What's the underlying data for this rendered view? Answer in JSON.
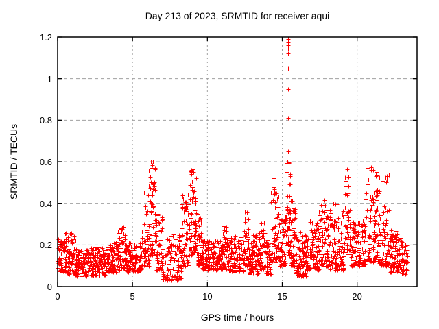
{
  "chart_data": {
    "type": "scatter",
    "title": "Day 213 of 2023, SRMTID for receiver aqui",
    "xlabel": "GPS time / hours",
    "ylabel": "SRMTID / TECUs",
    "xlim": [
      0,
      24
    ],
    "ylim": [
      0,
      1.2
    ],
    "xticks": [
      0,
      5,
      10,
      15,
      20
    ],
    "xtick_labels": [
      "0",
      "5",
      "10",
      "15",
      "20"
    ],
    "yticks": [
      0,
      0.2,
      0.4,
      0.6,
      0.8,
      1.0,
      1.2
    ],
    "ytick_labels": [
      "0",
      "0.2",
      "0.4",
      "0.6",
      "0.8",
      "1",
      "1.2"
    ],
    "grid": true,
    "legend": false,
    "marker": "plus",
    "marker_color": "#ff0000",
    "marker_size_px": 7,
    "grid_color": "#a0a0a0",
    "axis_color": "#000000",
    "background_color": "#ffffff",
    "sampling_interval_hours": 0.0083333,
    "description": "~2700 thirty-second SRMTID samples for receiver aqui; noisy baseline band ~0.05-0.25 TECUs with TID bursts near 6.3h (0.60), 9.0h (0.57), 14.5h (0.50), an extreme narrow spike at 15.4h reaching 1.19, and bursts near 19.3h, 20.9h, 21.3h and 22.0h (0.50-0.58). Data span 0-23.35h.",
    "density_model": {
      "seed": 213,
      "segment_fields": [
        "x_start",
        "x_end",
        "count",
        "y_min",
        "y_max",
        "skew"
      ],
      "segments": [
        [
          0.0,
          0.5,
          60,
          0.07,
          0.23,
          1.3
        ],
        [
          0.5,
          1.2,
          80,
          0.06,
          0.26,
          1.5
        ],
        [
          1.2,
          2.2,
          110,
          0.05,
          0.18,
          1.3
        ],
        [
          2.2,
          3.2,
          110,
          0.05,
          0.19,
          1.4
        ],
        [
          3.2,
          4.0,
          90,
          0.07,
          0.22,
          1.4
        ],
        [
          4.0,
          4.6,
          70,
          0.08,
          0.29,
          1.5
        ],
        [
          4.6,
          5.6,
          110,
          0.07,
          0.21,
          1.4
        ],
        [
          5.6,
          6.1,
          55,
          0.1,
          0.46,
          1.8
        ],
        [
          6.1,
          6.5,
          60,
          0.15,
          0.61,
          1.6
        ],
        [
          6.5,
          7.0,
          55,
          0.08,
          0.36,
          1.7
        ],
        [
          7.0,
          8.3,
          120,
          0.03,
          0.26,
          1.5
        ],
        [
          8.3,
          8.85,
          60,
          0.1,
          0.45,
          1.6
        ],
        [
          8.85,
          9.35,
          65,
          0.15,
          0.57,
          1.5
        ],
        [
          9.35,
          9.65,
          40,
          0.1,
          0.33,
          1.6
        ],
        [
          9.65,
          11.05,
          160,
          0.08,
          0.22,
          1.4
        ],
        [
          11.05,
          11.35,
          40,
          0.08,
          0.3,
          1.7
        ],
        [
          11.35,
          12.45,
          120,
          0.07,
          0.24,
          1.5
        ],
        [
          12.45,
          12.75,
          40,
          0.1,
          0.36,
          1.7
        ],
        [
          12.75,
          13.45,
          80,
          0.06,
          0.25,
          1.5
        ],
        [
          13.45,
          13.85,
          50,
          0.08,
          0.31,
          1.6
        ],
        [
          13.85,
          14.25,
          50,
          0.06,
          0.24,
          1.5
        ],
        [
          14.25,
          14.75,
          60,
          0.12,
          0.5,
          1.7
        ],
        [
          14.75,
          15.25,
          60,
          0.1,
          0.36,
          1.6
        ],
        [
          15.25,
          15.55,
          55,
          0.15,
          0.62,
          1.5
        ],
        [
          15.55,
          15.85,
          40,
          0.1,
          0.42,
          1.7
        ],
        [
          15.85,
          16.65,
          90,
          0.05,
          0.26,
          1.5
        ],
        [
          16.65,
          17.45,
          90,
          0.08,
          0.32,
          1.6
        ],
        [
          17.45,
          18.15,
          80,
          0.1,
          0.42,
          1.7
        ],
        [
          18.15,
          19.15,
          110,
          0.08,
          0.4,
          1.8
        ],
        [
          19.15,
          19.55,
          50,
          0.15,
          0.57,
          1.6
        ],
        [
          19.55,
          20.55,
          110,
          0.1,
          0.32,
          1.5
        ],
        [
          20.55,
          21.15,
          70,
          0.12,
          0.57,
          1.8
        ],
        [
          21.15,
          21.45,
          45,
          0.12,
          0.55,
          1.7
        ],
        [
          21.45,
          22.15,
          80,
          0.1,
          0.54,
          1.8
        ],
        [
          22.15,
          22.95,
          90,
          0.07,
          0.27,
          1.5
        ],
        [
          22.95,
          23.35,
          45,
          0.06,
          0.22,
          1.4
        ]
      ]
    },
    "outlier_points": [
      [
        15.38,
        1.19
      ],
      [
        15.4,
        1.175
      ],
      [
        15.39,
        1.16
      ],
      [
        15.4,
        1.155
      ],
      [
        15.41,
        1.145
      ],
      [
        15.4,
        1.12
      ],
      [
        15.39,
        1.05
      ],
      [
        15.4,
        0.95
      ],
      [
        15.41,
        0.81
      ],
      [
        15.39,
        0.65
      ],
      [
        15.53,
        0.49
      ],
      [
        6.28,
        0.6
      ],
      [
        6.3,
        0.585
      ],
      [
        9.02,
        0.565
      ],
      [
        9.05,
        0.55
      ],
      [
        19.33,
        0.565
      ],
      [
        20.92,
        0.575
      ],
      [
        21.3,
        0.55
      ],
      [
        21.98,
        0.53
      ],
      [
        22.0,
        0.515
      ],
      [
        21.95,
        0.5
      ],
      [
        14.45,
        0.52
      ],
      [
        0.9,
        0.25
      ],
      [
        4.3,
        0.285
      ]
    ]
  }
}
